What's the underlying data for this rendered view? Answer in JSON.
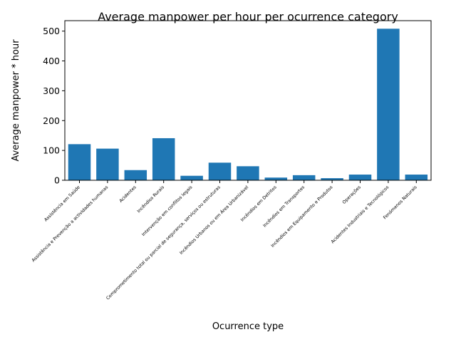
{
  "chart_data": {
    "type": "bar",
    "title": "Average manpower per hour per ocurrence category",
    "xlabel": "Ocurrence type",
    "ylabel": "Average manpower * hour",
    "ylim": [
      0,
      535
    ],
    "yticks": [
      0,
      100,
      200,
      300,
      400,
      500
    ],
    "grid": false,
    "bar_color": "#1f77b4",
    "categories": [
      "Assistência em Saúde",
      "Assistência e Prevenção a actividades humanas",
      "Acidentes",
      "Incêndios Rurais",
      "Intervenção em conflitos legais",
      "Comprometimento total ou parcial de segurança, serviços ou estruturas",
      "Incêndios Urbanos ou em Área Urbanizável",
      "Incêndios em Detritos",
      "Incêndios em Transportes",
      "Incêndios em Equipamento e Produtos",
      "Operações",
      "Acidentes Industriais e Tecnológicos",
      "Fenómenos Naturais"
    ],
    "values": [
      121,
      106,
      34,
      141,
      15,
      59,
      47,
      9,
      17,
      7,
      19,
      508,
      19
    ]
  }
}
